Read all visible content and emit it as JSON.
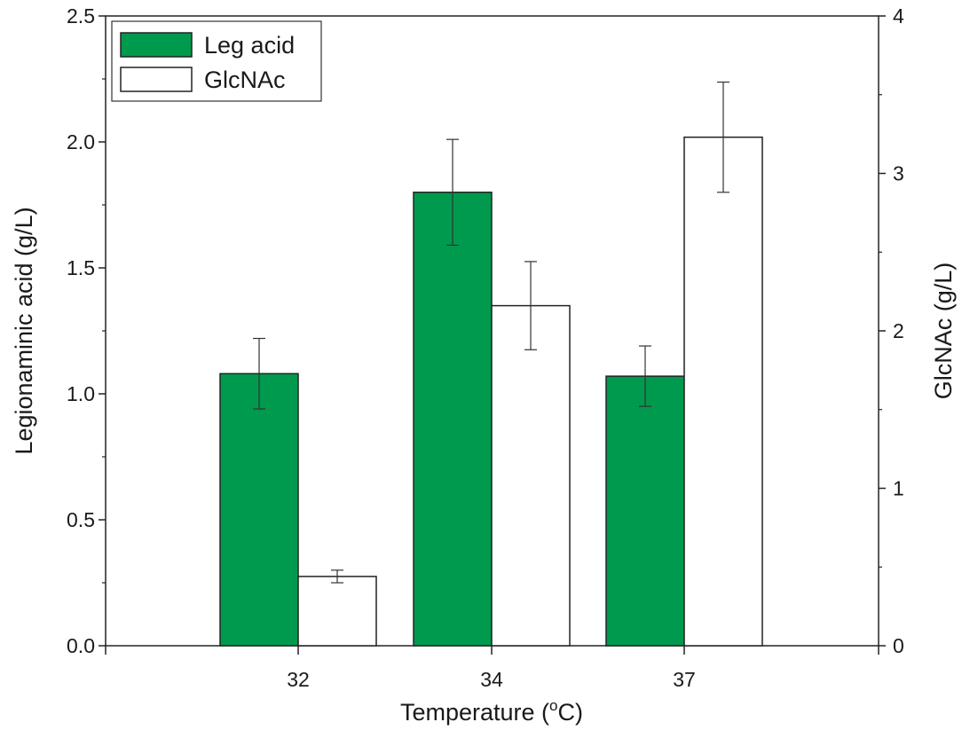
{
  "chart_data": {
    "type": "bar",
    "categories": [
      "32",
      "34",
      "37"
    ],
    "xlabel": "Temperature (",
    "xlabel_degree_mark": "o",
    "xlabel_unit": "C)",
    "ylabel_left": "Legionaminic acid (g/L)",
    "ylabel_right": "GlcNAc (g/L)",
    "ylim_left": [
      0,
      2.5
    ],
    "ylim_right": [
      0,
      4
    ],
    "yticks_left": [
      "0.0",
      "0.5",
      "1.0",
      "1.5",
      "2.0",
      "2.5"
    ],
    "yticks_right": [
      "0",
      "1",
      "2",
      "3",
      "4"
    ],
    "grid": false,
    "legend_position": "top-left",
    "series": [
      {
        "name": "Leg acid",
        "axis": "left",
        "color": "#009a4e",
        "values": [
          1.08,
          1.8,
          1.07
        ],
        "errors": [
          0.14,
          0.21,
          0.12
        ]
      },
      {
        "name": "GlcNAc",
        "axis": "right",
        "color": "#ffffff",
        "values": [
          0.44,
          2.16,
          3.23
        ],
        "errors": [
          0.04,
          0.28,
          0.35
        ]
      }
    ]
  }
}
